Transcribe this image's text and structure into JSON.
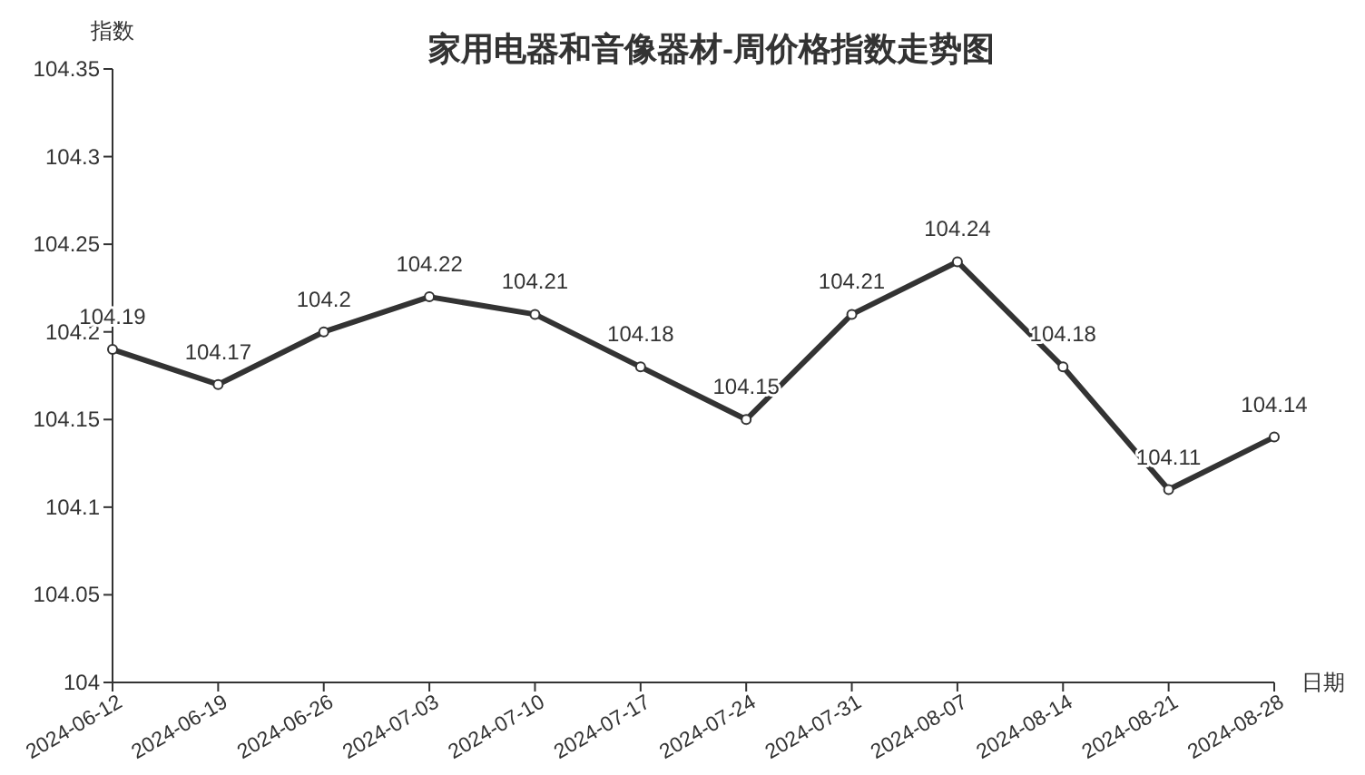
{
  "chart_data": {
    "type": "line",
    "title": "家用电器和音像器材-周价格指数走势图",
    "xlabel": "日期",
    "ylabel": "指数",
    "categories": [
      "2024-06-12",
      "2024-06-19",
      "2024-06-26",
      "2024-07-03",
      "2024-07-10",
      "2024-07-17",
      "2024-07-24",
      "2024-07-31",
      "2024-08-07",
      "2024-08-14",
      "2024-08-21",
      "2024-08-28"
    ],
    "values": [
      104.19,
      104.17,
      104.2,
      104.22,
      104.21,
      104.18,
      104.15,
      104.21,
      104.24,
      104.18,
      104.11,
      104.14
    ],
    "color": "#333333",
    "marker": "circle",
    "data_labels": true,
    "ylim": [
      104,
      104.35
    ],
    "yticks": [
      104,
      104.05,
      104.1,
      104.15,
      104.2,
      104.25,
      104.3,
      104.35
    ]
  }
}
